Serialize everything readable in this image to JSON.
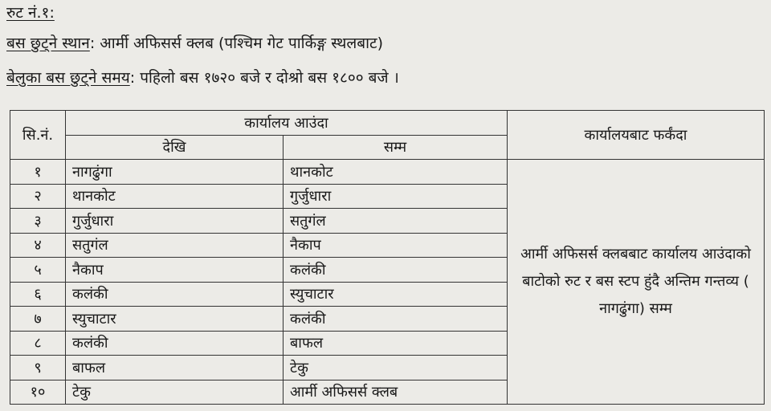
{
  "route_title": "रुट नं.१:",
  "departure_place": {
    "label": "बस छुट्ने स्थान",
    "value": "आर्मी अफिसर्स क्लब (पश्चिम गेट पार्किङ्ग स्थलबाट)"
  },
  "departure_time": {
    "label": "बेलुका बस छुट्ने समय",
    "value": "पहिलो बस १७२० बजे र दोश्रो बस १८०० बजे ।"
  },
  "table": {
    "headers": {
      "sn": "सि.नं.",
      "to_office": "कार्यालय आउंदा",
      "from": "देखि",
      "to": "सम्म",
      "from_office": "कार्यालयबाट फर्कंदा"
    },
    "rows": [
      {
        "sn": "१",
        "from": "नागढुंगा",
        "to": "थानकोट"
      },
      {
        "sn": "२",
        "from": "थानकोट",
        "to": "गुर्जुधारा"
      },
      {
        "sn": "३",
        "from": "गुर्जुधारा",
        "to": "सतुगंल"
      },
      {
        "sn": "४",
        "from": "सतुगंल",
        "to": "नैकाप"
      },
      {
        "sn": "५",
        "from": "नैकाप",
        "to": "कलंकी"
      },
      {
        "sn": "६",
        "from": "कलंकी",
        "to": "स्युचाटार"
      },
      {
        "sn": "७",
        "from": "स्युचाटार",
        "to": "कलंकी"
      },
      {
        "sn": "८",
        "from": "कलंकी",
        "to": "बाफल"
      },
      {
        "sn": "९",
        "from": "बाफल",
        "to": "टेकु"
      },
      {
        "sn": "१०",
        "from": "टेकु",
        "to": "आर्मी अफिसर्स क्लब"
      }
    ],
    "return_note": "आर्मी अफिसर्स क्लबबाट कार्यालय आउंदाको बाटोको रुट र बस स्टप हुंदै अन्तिम गन्तव्य ( नागढुंगा) सम्म"
  }
}
